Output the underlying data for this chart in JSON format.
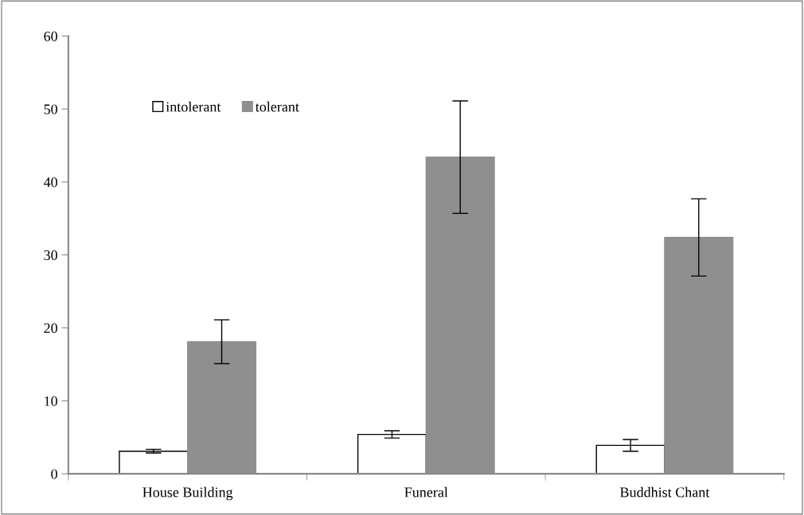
{
  "chart_data": {
    "type": "bar",
    "categories": [
      "House Building",
      "Funeral",
      "Buddhist Chant"
    ],
    "series": [
      {
        "name": "intolerant",
        "color": "#ffffff",
        "values": [
          3.1,
          5.4,
          3.9
        ],
        "errors": [
          0.25,
          0.5,
          0.8
        ]
      },
      {
        "name": "tolerant",
        "color": "#8f8f8f",
        "values": [
          18.1,
          43.4,
          32.4
        ],
        "errors": [
          3.0,
          7.7,
          5.3
        ]
      }
    ],
    "ylim": [
      0,
      60
    ],
    "yticks": [
      0,
      10,
      20,
      30,
      40,
      50,
      60
    ],
    "grid": false,
    "legend": "top left"
  }
}
